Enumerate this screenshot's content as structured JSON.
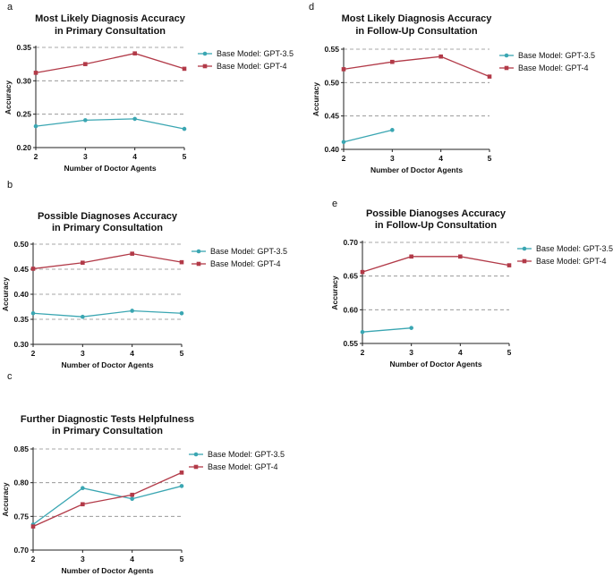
{
  "colors": {
    "gpt35": "#3aa6b2",
    "gpt4": "#b23a48",
    "grid": "#8a8a8a",
    "axis": "#222222"
  },
  "chart_data": [
    {
      "id": "a",
      "letter": "a",
      "type": "line",
      "title": [
        "Most Likely Diagnosis Accuracy",
        "in Primary Consultation"
      ],
      "xlabel": "Number of Doctor Agents",
      "ylabel": "Accuracy",
      "xlim": [
        2,
        5
      ],
      "xticks": [
        2,
        3,
        4,
        5
      ],
      "ylim": [
        0.2,
        0.35
      ],
      "yticks": [
        0.2,
        0.25,
        0.3,
        0.35
      ],
      "ytick_labels": [
        "0.20",
        "0.25",
        "0.30",
        "0.35"
      ],
      "grid": true,
      "series": [
        {
          "name": "Base Model: GPT-3.5",
          "marker": "circle",
          "x": [
            2,
            3,
            4,
            5
          ],
          "y": [
            0.232,
            0.241,
            0.243,
            0.228
          ]
        },
        {
          "name": "Base Model: GPT-4",
          "marker": "square",
          "x": [
            2,
            3,
            4,
            5
          ],
          "y": [
            0.312,
            0.325,
            0.341,
            0.318
          ]
        }
      ]
    },
    {
      "id": "b",
      "letter": "b",
      "type": "line",
      "title": [
        "Possible Diagnoses Accuracy",
        "in Primary Consultation"
      ],
      "xlabel": "Number of Doctor Agents",
      "ylabel": "Accuracy",
      "xlim": [
        2,
        5
      ],
      "xticks": [
        2,
        3,
        4,
        5
      ],
      "ylim": [
        0.3,
        0.5
      ],
      "yticks": [
        0.3,
        0.35,
        0.4,
        0.45,
        0.5
      ],
      "ytick_labels": [
        "0.30",
        "0.35",
        "0.40",
        "0.45",
        "0.50"
      ],
      "grid": true,
      "series": [
        {
          "name": "Base Model: GPT-3.5",
          "marker": "circle",
          "x": [
            2,
            3,
            4,
            5
          ],
          "y": [
            0.362,
            0.355,
            0.367,
            0.362
          ]
        },
        {
          "name": "Base Model: GPT-4",
          "marker": "square",
          "x": [
            2,
            3,
            4,
            5
          ],
          "y": [
            0.451,
            0.463,
            0.481,
            0.464
          ]
        }
      ]
    },
    {
      "id": "c",
      "letter": "c",
      "type": "line",
      "title": [
        "Further Diagnostic Tests Helpfulness",
        "in Primary Consultation"
      ],
      "xlabel": "Number of Doctor Agents",
      "ylabel": "Accuracy",
      "xlim": [
        2,
        5
      ],
      "xticks": [
        2,
        3,
        4,
        5
      ],
      "ylim": [
        0.7,
        0.85
      ],
      "yticks": [
        0.7,
        0.75,
        0.8,
        0.85
      ],
      "ytick_labels": [
        "0.70",
        "0.75",
        "0.80",
        "0.85"
      ],
      "grid": true,
      "series": [
        {
          "name": "Base Model: GPT-3.5",
          "marker": "circle",
          "x": [
            2,
            3,
            4,
            5
          ],
          "y": [
            0.738,
            0.792,
            0.776,
            0.795
          ]
        },
        {
          "name": "Base Model: GPT-4",
          "marker": "square",
          "x": [
            2,
            3,
            4,
            5
          ],
          "y": [
            0.735,
            0.768,
            0.782,
            0.815
          ]
        }
      ]
    },
    {
      "id": "d",
      "letter": "d",
      "type": "line",
      "title": [
        "Most Likely Diagnosis Accuracy",
        "in Follow-Up Consultation"
      ],
      "xlabel": "Number of Doctor Agents",
      "ylabel": "Accuracy",
      "xlim": [
        2,
        5
      ],
      "xticks": [
        2,
        3,
        4,
        5
      ],
      "ylim": [
        0.4,
        0.55
      ],
      "yticks": [
        0.4,
        0.45,
        0.5,
        0.55
      ],
      "ytick_labels": [
        "0.40",
        "0.45",
        "0.50",
        "0.55"
      ],
      "grid": true,
      "series": [
        {
          "name": "Base Model: GPT-3.5",
          "marker": "circle",
          "x": [
            2,
            3
          ],
          "y": [
            0.411,
            0.429
          ]
        },
        {
          "name": "Base Model: GPT-4",
          "marker": "square",
          "x": [
            2,
            3,
            4,
            5
          ],
          "y": [
            0.52,
            0.531,
            0.539,
            0.509
          ]
        }
      ]
    },
    {
      "id": "e",
      "letter": "e",
      "type": "line",
      "title": [
        "Possible Dianogses Accuracy",
        "in Follow-Up Consultation"
      ],
      "xlabel": "Number of Doctor Agents",
      "ylabel": "Accuracy",
      "xlim": [
        2,
        5
      ],
      "xticks": [
        2,
        3,
        4,
        5
      ],
      "ylim": [
        0.55,
        0.7
      ],
      "yticks": [
        0.55,
        0.6,
        0.65,
        0.7
      ],
      "ytick_labels": [
        "0.55",
        "0.60",
        "0.65",
        "0.70"
      ],
      "grid": true,
      "series": [
        {
          "name": "Base Model: GPT-3.5",
          "marker": "circle",
          "x": [
            2,
            3
          ],
          "y": [
            0.567,
            0.573
          ]
        },
        {
          "name": "Base Model: GPT-4",
          "marker": "square",
          "x": [
            2,
            3,
            4,
            5
          ],
          "y": [
            0.656,
            0.679,
            0.679,
            0.666
          ]
        }
      ]
    }
  ]
}
